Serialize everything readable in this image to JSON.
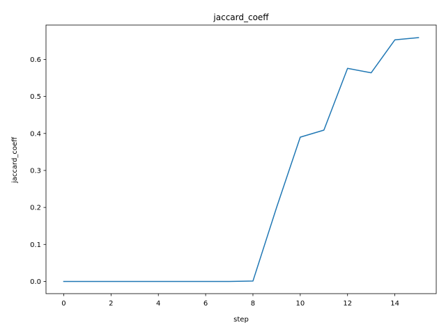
{
  "chart_data": {
    "type": "line",
    "title": "jaccard_coeff",
    "xlabel": "step",
    "ylabel": "jaccard_coeff",
    "xlim": [
      -0.75,
      15.75
    ],
    "ylim": [
      -0.033,
      0.693
    ],
    "xticks": [
      0,
      2,
      4,
      6,
      8,
      10,
      12,
      14
    ],
    "xtick_labels": [
      "0",
      "2",
      "4",
      "6",
      "8",
      "10",
      "12",
      "14"
    ],
    "yticks": [
      0.0,
      0.1,
      0.2,
      0.3,
      0.4,
      0.5,
      0.6
    ],
    "ytick_labels": [
      "0.0",
      "0.1",
      "0.2",
      "0.3",
      "0.4",
      "0.5",
      "0.6"
    ],
    "grid": false,
    "legend": "none",
    "series": [
      {
        "color": "#1f77b4",
        "x": [
          0,
          1,
          2,
          3,
          4,
          5,
          6,
          7,
          8,
          9,
          10,
          11,
          12,
          13,
          14,
          15
        ],
        "y": [
          0.0,
          0.0,
          0.0,
          0.0,
          0.0,
          0.0,
          0.0,
          0.0,
          0.001,
          0.2,
          0.39,
          0.409,
          0.576,
          0.564,
          0.653,
          0.659
        ]
      }
    ]
  }
}
